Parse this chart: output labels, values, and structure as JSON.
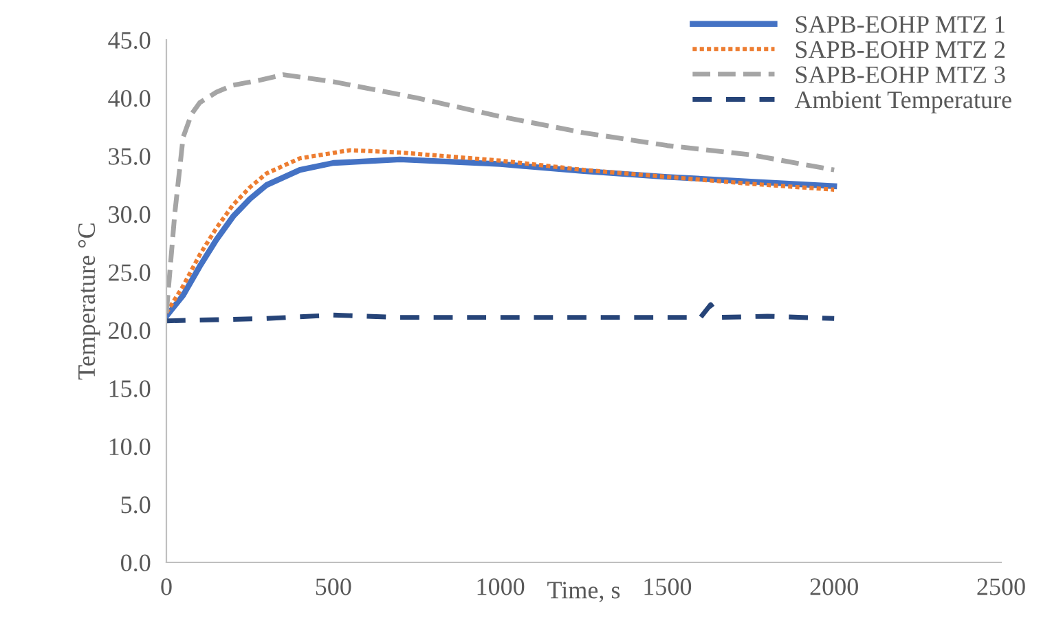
{
  "chart_data": {
    "type": "line",
    "xlabel": "Time, s",
    "ylabel": "Temperature °C",
    "xlim": [
      0,
      2500
    ],
    "xticks": [
      0,
      500,
      1000,
      1500,
      2000,
      2500
    ],
    "ylim": [
      0,
      45
    ],
    "yticks": [
      {
        "value": 0,
        "label": "0.0"
      },
      {
        "value": 5,
        "label": "5.0"
      },
      {
        "value": 10,
        "label": "10.0"
      },
      {
        "value": 15,
        "label": "15.0"
      },
      {
        "value": 20,
        "label": "20.0"
      },
      {
        "value": 25,
        "label": "25.0"
      },
      {
        "value": 30,
        "label": "30.0"
      },
      {
        "value": 35,
        "label": "35.0"
      },
      {
        "value": 40,
        "label": "40.0"
      },
      {
        "value": 45,
        "label": "45.0"
      }
    ],
    "grid": false,
    "legend": "top right",
    "marker": "none",
    "series": [
      {
        "name": "SAPB-EOHP MTZ 1",
        "color": "#4472c4",
        "line_style": "solid",
        "x": [
          0,
          50,
          100,
          150,
          200,
          250,
          300,
          400,
          500,
          700,
          1000,
          1250,
          1500,
          1750,
          2000
        ],
        "values": [
          21.2,
          23.0,
          25.5,
          27.8,
          29.8,
          31.3,
          32.5,
          33.8,
          34.4,
          34.7,
          34.3,
          33.7,
          33.2,
          32.8,
          32.4
        ]
      },
      {
        "name": "SAPB-EOHP MTZ 2",
        "color": "#ed7d31",
        "line_style": "dotted",
        "x": [
          0,
          50,
          100,
          150,
          200,
          250,
          300,
          400,
          550,
          700,
          1000,
          1250,
          1500,
          1750,
          2000
        ],
        "values": [
          21.5,
          23.8,
          26.5,
          28.8,
          30.8,
          32.3,
          33.5,
          34.8,
          35.5,
          35.3,
          34.6,
          33.8,
          33.2,
          32.6,
          32.1
        ]
      },
      {
        "name": "SAPB-EOHP MTZ 3",
        "color": "#a5a5a5",
        "line_style": "dashed",
        "x": [
          0,
          25,
          50,
          75,
          100,
          150,
          200,
          275,
          350,
          500,
          750,
          1000,
          1250,
          1500,
          1750,
          2000
        ],
        "values": [
          21.5,
          30.0,
          36.6,
          38.6,
          39.6,
          40.5,
          41.1,
          41.5,
          42.0,
          41.4,
          40.0,
          38.4,
          37.0,
          35.9,
          35.1,
          33.8
        ]
      },
      {
        "name": "Ambient Temperature",
        "color": "#264478",
        "line_style": "dashed",
        "x": [
          0,
          150,
          300,
          500,
          700,
          1000,
          1300,
          1600,
          1630,
          1660,
          1800,
          2000
        ],
        "values": [
          20.8,
          20.9,
          21.0,
          21.3,
          21.1,
          21.1,
          21.1,
          21.1,
          22.2,
          21.1,
          21.2,
          21.0
        ]
      }
    ]
  }
}
